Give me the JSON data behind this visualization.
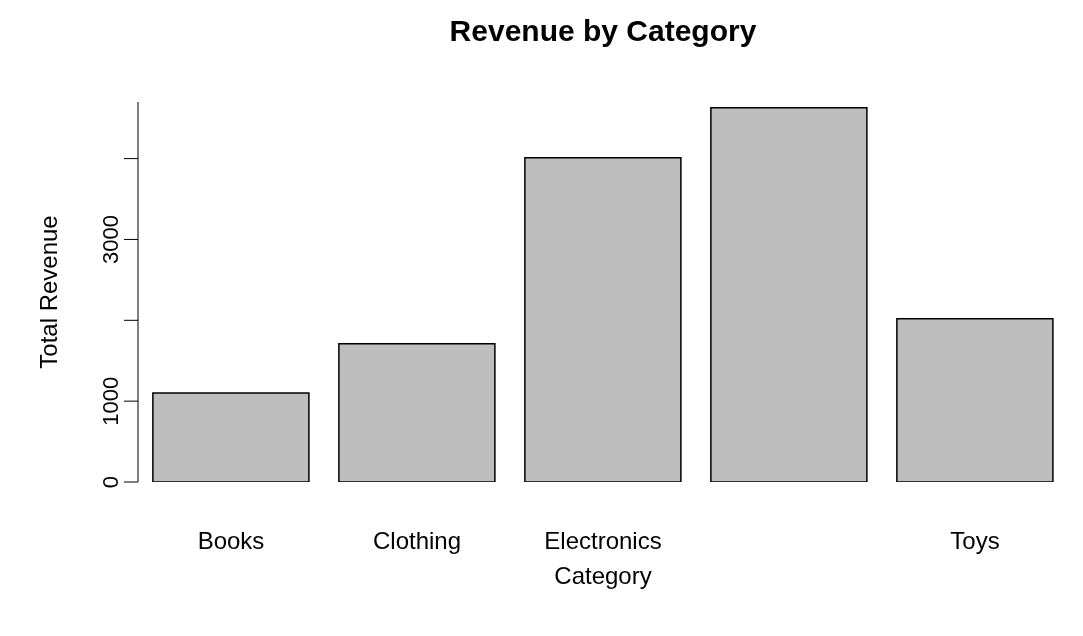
{
  "chart_data": {
    "type": "bar",
    "title": "Revenue by Category",
    "xlabel": "Category",
    "ylabel": "Total Revenue",
    "categories": [
      "Books",
      "Clothing",
      "Electronics",
      null,
      "Toys"
    ],
    "values": [
      1100,
      1710,
      4010,
      4630,
      2020
    ],
    "color": "#bebebe",
    "ylim": [
      0,
      4700
    ],
    "yticks": [
      0,
      1000,
      {
        "value": 2000,
        "label": null
      },
      3000,
      {
        "value": 4000,
        "label": null
      }
    ],
    "grid": false,
    "legend": false
  }
}
